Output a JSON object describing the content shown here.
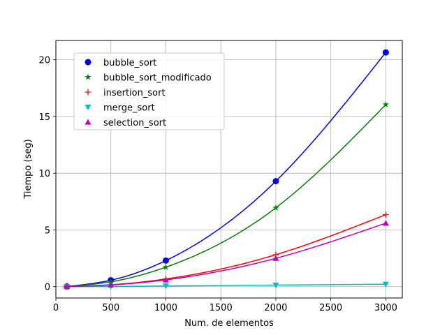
{
  "chart_data": {
    "type": "line",
    "title": "",
    "xlabel": "Num. de elementos",
    "ylabel": "Tiempo (seg)",
    "xlim": [
      0,
      3150
    ],
    "ylim": [
      -1.0,
      21.7
    ],
    "xticks": [
      0,
      500,
      1000,
      1500,
      2000,
      2500,
      3000
    ],
    "yticks": [
      0,
      5,
      10,
      15,
      20
    ],
    "grid": true,
    "legend_position": "top-left",
    "x": [
      100,
      500,
      1000,
      2000,
      3000
    ],
    "series": [
      {
        "name": "bubble_sort",
        "color": "#0000ff",
        "marker": "circle",
        "values": [
          0.02,
          0.57,
          2.3,
          9.3,
          20.65
        ]
      },
      {
        "name": "bubble_sort_modificado",
        "color": "#008000",
        "marker": "star",
        "values": [
          0.02,
          0.43,
          1.72,
          6.95,
          16.05
        ]
      },
      {
        "name": "insertion_sort",
        "color": "#ff0000",
        "marker": "plus",
        "values": [
          0.01,
          0.17,
          0.68,
          2.82,
          6.35
        ]
      },
      {
        "name": "merge_sort",
        "color": "#00bfbf",
        "marker": "triangle-down",
        "values": [
          0.0,
          0.02,
          0.06,
          0.14,
          0.22
        ]
      },
      {
        "name": "selection_sort",
        "color": "#bf00bf",
        "marker": "triangle-up",
        "values": [
          0.01,
          0.15,
          0.6,
          2.5,
          5.6
        ]
      }
    ]
  }
}
